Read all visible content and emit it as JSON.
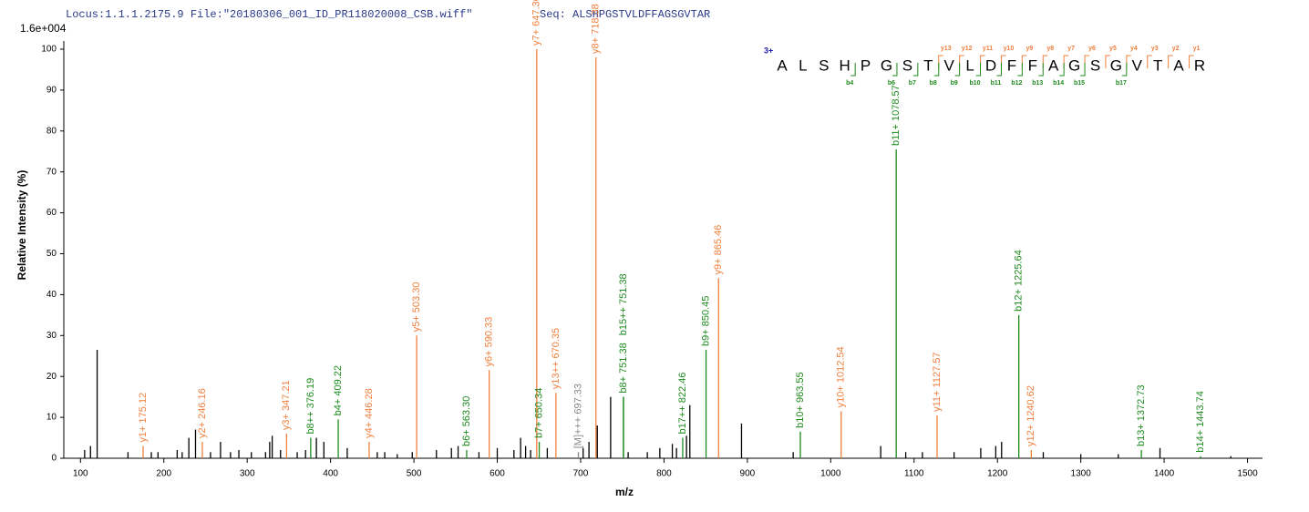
{
  "chart_data": {
    "type": "bar",
    "title": "Locus:1.1.1.2175.9 File:\"20180306_001_ID_PR118020008_CSB.wiff\"",
    "subtitle": "Seq: ALSHPGSTVLDFFAGSGVTAR",
    "scale_label": "1.6e+004",
    "xlabel": "m/z",
    "ylabel": "Relative  Intensity (%)",
    "xlim": [
      80,
      1518
    ],
    "ylim": [
      0,
      102
    ],
    "xticks": [
      100,
      200,
      300,
      400,
      500,
      600,
      700,
      800,
      900,
      1000,
      1100,
      1200,
      1300,
      1400,
      1500
    ],
    "yticks": [
      0,
      10,
      20,
      30,
      40,
      50,
      60,
      70,
      80,
      90,
      100
    ],
    "series": [
      {
        "color": "#000000",
        "x": [
          105,
          112,
          120,
          157,
          185,
          193,
          216,
          222,
          230,
          238,
          256,
          268,
          280,
          290,
          305,
          322,
          327,
          330,
          340,
          360,
          370,
          383,
          392,
          420,
          456,
          465,
          480,
          498,
          527,
          545,
          553,
          578,
          600,
          620,
          628,
          634,
          640,
          660,
          703,
          710,
          720,
          736,
          757,
          780,
          795,
          810,
          815,
          827,
          831,
          893,
          955,
          1060,
          1090,
          1110,
          1148,
          1180,
          1198,
          1205,
          1255,
          1300,
          1345,
          1395,
          1480
        ],
        "values": [
          2,
          3,
          26.5,
          1.5,
          1.5,
          1.5,
          2,
          1.5,
          5,
          7,
          1.5,
          4,
          1.5,
          2,
          1.5,
          1.5,
          4,
          5.5,
          2,
          1.5,
          2,
          5,
          4,
          2.5,
          1.5,
          1.5,
          1,
          1.5,
          2,
          2.5,
          3,
          1.5,
          2.5,
          2,
          5,
          3,
          2,
          2.5,
          2.5,
          4,
          8,
          15,
          1.5,
          1.5,
          2.5,
          3.5,
          2.5,
          5.5,
          13,
          8.5,
          1.5,
          3,
          1.5,
          1.5,
          1.5,
          2.5,
          3,
          4,
          1.5,
          1,
          1,
          2.5,
          0.5
        ]
      },
      {
        "color": "#f07f3c",
        "x": [
          175.12,
          246.16,
          347.21,
          446.28,
          503.3,
          590.33,
          647.36,
          670.35,
          718.38,
          865.46,
          1012.54,
          1127.57,
          1240.62
        ],
        "values": [
          3,
          4,
          6,
          4,
          30,
          21.5,
          100,
          16,
          98,
          44,
          11.5,
          10.5,
          2
        ],
        "labels": [
          "y1+ 175.12",
          "y2+ 246.16",
          "y3+ 347.21",
          "y4+ 446.28",
          "y5+ 503.30",
          "y6+ 590.33",
          "y7+ 647.36",
          "y13++ 670.35",
          "y8+ 718.38",
          "y9+ 865.46",
          "y10+ 1012.54",
          "y11+ 1127.57",
          "y12+ 1240.62"
        ]
      },
      {
        "color": "#1e8a1e",
        "x": [
          376.19,
          409.22,
          563.3,
          650.34,
          751.38,
          751.38,
          822.46,
          850.45,
          963.55,
          1078.57,
          1225.64,
          1372.73,
          1443.74
        ],
        "values": [
          5,
          9.5,
          2,
          4,
          15,
          15,
          5,
          26.5,
          6.5,
          75.5,
          35,
          2,
          0.5
        ],
        "labels": [
          "b8++ 376.19",
          "b4+ 409.22",
          "b6+ 563.30",
          "b7+ 650.34",
          "b8+ 751.38",
          "b15++ 751.38",
          "b17++ 822.46",
          "b9+ 850.45",
          "b10+ 963.55",
          "b11+ 1078.57",
          "b12+ 1225.64",
          "b13+ 1372.73",
          "b14+ 1443.74"
        ]
      },
      {
        "color": "#888888",
        "x": [
          697.33
        ],
        "values": [
          1.5
        ],
        "labels": [
          "[M]+++ 697.33"
        ]
      }
    ],
    "sequence": {
      "charge": "3+",
      "residues": [
        "A",
        "L",
        "S",
        "H",
        "P",
        "G",
        "S",
        "T",
        "V",
        "L",
        "D",
        "F",
        "F",
        "A",
        "G",
        "S",
        "G",
        "V",
        "T",
        "A",
        "R"
      ],
      "y_ions": [
        "y13",
        "y12",
        "y11",
        "y10",
        "y9",
        "y8",
        "y7",
        "y6",
        "y5",
        "y4",
        "y3",
        "y2",
        "y1"
      ],
      "b_ions": [
        "b4",
        "b6",
        "b7",
        "b8",
        "b9",
        "b10",
        "b11",
        "b12",
        "b13",
        "b14",
        "b15",
        "b17"
      ]
    }
  }
}
